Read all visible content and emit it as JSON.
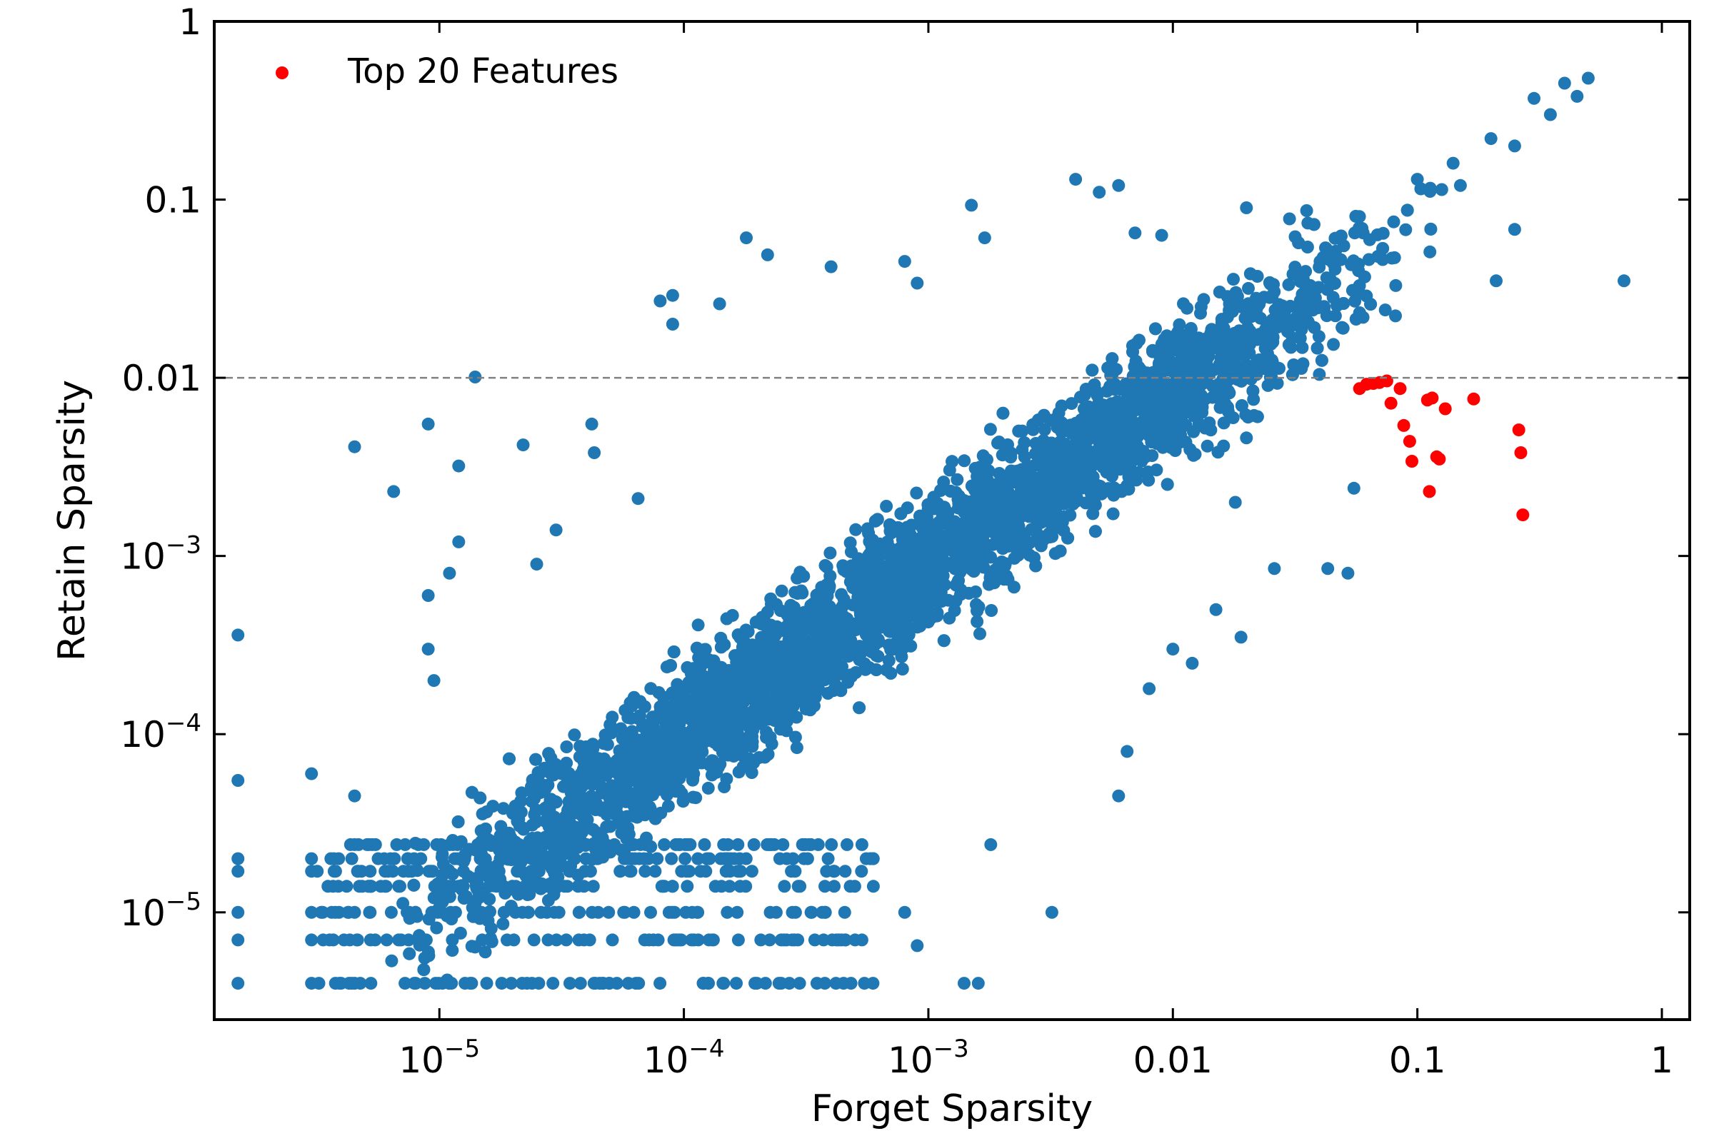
{
  "chart_data": {
    "type": "scatter",
    "xlabel": "Forget Sparsity",
    "ylabel": "Retain Sparsity",
    "x_scale": "log",
    "y_scale": "log",
    "xlim": [
      1.2e-06,
      1.3
    ],
    "ylim": [
      2.5e-06,
      1.0
    ],
    "x_ticks": [
      {
        "value": 1e-05,
        "base": "10",
        "exp": "−5",
        "label": ""
      },
      {
        "value": 0.0001,
        "base": "10",
        "exp": "−4",
        "label": ""
      },
      {
        "value": 0.001,
        "base": "10",
        "exp": "−3",
        "label": ""
      },
      {
        "value": 0.01,
        "base": "",
        "exp": "",
        "label": "0.01"
      },
      {
        "value": 0.1,
        "base": "",
        "exp": "",
        "label": "0.1"
      },
      {
        "value": 1,
        "base": "",
        "exp": "",
        "label": "1"
      }
    ],
    "y_ticks": [
      {
        "value": 1e-05,
        "base": "10",
        "exp": "−5",
        "label": ""
      },
      {
        "value": 0.0001,
        "base": "10",
        "exp": "−4",
        "label": ""
      },
      {
        "value": 0.001,
        "base": "10",
        "exp": "−3",
        "label": ""
      },
      {
        "value": 0.01,
        "base": "",
        "exp": "",
        "label": "0.01"
      },
      {
        "value": 0.1,
        "base": "",
        "exp": "",
        "label": "0.1"
      },
      {
        "value": 1,
        "base": "",
        "exp": "",
        "label": "1"
      }
    ],
    "reference_line": {
      "y": 0.01,
      "style": "dashed",
      "color": "#808080"
    },
    "legend": {
      "placement": "top-left",
      "entries": [
        "Top 20 Features"
      ]
    },
    "grid": false,
    "series": [
      {
        "color": "#1f77b4",
        "trend": {
          "slope": 0.95,
          "anchor_x": 0.001,
          "anchor_y": 0.0009
        },
        "points": [
          [
            1.5e-06,
            0.00036
          ],
          [
            1.5e-06,
            5.5e-05
          ],
          [
            1.5e-06,
            2e-05
          ],
          [
            1.5e-06,
            1.7e-05
          ],
          [
            1.5e-06,
            1e-05
          ],
          [
            1.5e-06,
            7e-06
          ],
          [
            1.5e-06,
            4e-06
          ],
          [
            3e-06,
            6e-05
          ],
          [
            3e-06,
            2e-05
          ],
          [
            3e-06,
            1.7e-05
          ],
          [
            3e-06,
            1e-05
          ],
          [
            3e-06,
            7e-06
          ],
          [
            3e-06,
            4e-06
          ],
          [
            4.5e-06,
            0.0041
          ],
          [
            4.5e-06,
            4.5e-05
          ],
          [
            4.5e-06,
            2.4e-05
          ],
          [
            4.5e-06,
            1e-05
          ],
          [
            4.5e-06,
            4e-06
          ],
          [
            9e-06,
            0.0055
          ],
          [
            9e-06,
            0.0006
          ],
          [
            9e-06,
            0.0003
          ],
          [
            6.5e-06,
            0.0023
          ],
          [
            9.5e-06,
            0.0002
          ],
          [
            1.1e-05,
            0.0008
          ],
          [
            1.2e-05,
            0.0032
          ],
          [
            1.2e-05,
            0.0012
          ],
          [
            1.4e-05,
            0.0101
          ],
          [
            2.2e-05,
            0.0042
          ],
          [
            2.5e-05,
            0.0009
          ],
          [
            3e-05,
            0.0014
          ],
          [
            4.2e-05,
            0.0055
          ],
          [
            4.3e-05,
            0.0038
          ],
          [
            6.5e-05,
            0.0021
          ],
          [
            8e-05,
            0.027
          ],
          [
            9e-05,
            0.029
          ],
          [
            9e-05,
            0.02
          ],
          [
            0.00014,
            0.026
          ],
          [
            0.00018,
            0.061
          ],
          [
            0.00022,
            0.049
          ],
          [
            0.0004,
            0.042
          ],
          [
            0.0008,
            0.045
          ],
          [
            0.0009,
            0.034
          ],
          [
            0.0015,
            0.093
          ],
          [
            0.0017,
            0.061
          ],
          [
            0.004,
            0.13
          ],
          [
            0.005,
            0.11
          ],
          [
            0.006,
            0.12
          ],
          [
            0.007,
            0.065
          ],
          [
            0.009,
            0.063
          ],
          [
            0.02,
            0.09
          ],
          [
            0.03,
            0.078
          ],
          [
            0.02,
            0.0046
          ],
          [
            0.018,
            0.002
          ],
          [
            0.026,
            0.00085
          ],
          [
            0.015,
            0.0005
          ],
          [
            0.01,
            0.0003
          ],
          [
            0.008,
            0.00018
          ],
          [
            0.0065,
            8e-05
          ],
          [
            0.006,
            4.5e-05
          ],
          [
            0.0032,
            1e-05
          ],
          [
            0.0016,
            4e-06
          ],
          [
            0.0014,
            4e-06
          ],
          [
            0.0009,
            6.5e-06
          ],
          [
            0.0008,
            1e-05
          ],
          [
            0.0005,
            1.4e-05
          ],
          [
            0.00025,
            7e-06
          ],
          [
            0.00025,
            4e-06
          ],
          [
            0.00035,
            4e-06
          ],
          [
            0.00045,
            4e-06
          ],
          [
            0.0018,
            2.4e-05
          ],
          [
            0.00029,
            8.4e-05
          ],
          [
            0.052,
            0.0008
          ],
          [
            0.055,
            0.0024
          ],
          [
            0.043,
            0.00085
          ],
          [
            0.019,
            0.00035
          ],
          [
            0.012,
            0.00025
          ],
          [
            0.21,
            0.035
          ],
          [
            0.25,
            0.068
          ],
          [
            0.7,
            0.035
          ],
          [
            0.14,
            0.16
          ],
          [
            0.2,
            0.22
          ],
          [
            0.3,
            0.37
          ],
          [
            0.4,
            0.45
          ],
          [
            0.5,
            0.48
          ],
          [
            0.45,
            0.38
          ],
          [
            0.35,
            0.3
          ],
          [
            0.25,
            0.2
          ],
          [
            0.15,
            0.12
          ],
          [
            0.1,
            0.13
          ],
          [
            0.08,
            0.075
          ],
          [
            0.06,
            0.065
          ],
          [
            0.05,
            0.055
          ],
          [
            0.04,
            0.045
          ]
        ]
      },
      {
        "name": "Top 20 Features",
        "color": "#ff0000",
        "points": [
          [
            0.058,
            0.0087
          ],
          [
            0.062,
            0.0092
          ],
          [
            0.066,
            0.0093
          ],
          [
            0.07,
            0.0094
          ],
          [
            0.075,
            0.0096
          ],
          [
            0.078,
            0.0072
          ],
          [
            0.085,
            0.0087
          ],
          [
            0.088,
            0.0054
          ],
          [
            0.093,
            0.0044
          ],
          [
            0.095,
            0.0034
          ],
          [
            0.115,
            0.0077
          ],
          [
            0.112,
            0.0023
          ],
          [
            0.12,
            0.0036
          ],
          [
            0.123,
            0.0035
          ],
          [
            0.13,
            0.0067
          ],
          [
            0.17,
            0.0076
          ],
          [
            0.26,
            0.0051
          ],
          [
            0.265,
            0.0038
          ],
          [
            0.27,
            0.0017
          ],
          [
            0.11,
            0.0075
          ]
        ]
      }
    ]
  }
}
